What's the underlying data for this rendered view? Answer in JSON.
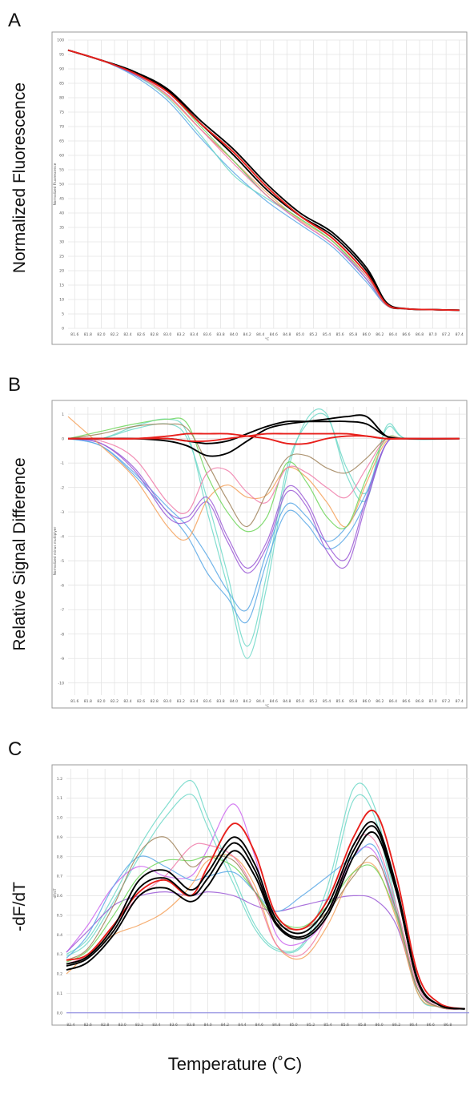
{
  "figure": {
    "panels": [
      "A",
      "B",
      "C"
    ],
    "x_axis_label": "Temperature (˚C)",
    "y_labels": [
      "Normalized Fluorescence",
      "Relative Signal Difference",
      "-dF/dT"
    ]
  },
  "chart_data": [
    {
      "type": "line",
      "panel": "A",
      "ylabel": "Normalized Fluorescence",
      "inner_ylabel": "Normalized Fluorescence",
      "inner_xlabel": "°C",
      "xlim": [
        81.5,
        87.5
      ],
      "ylim": [
        0,
        100
      ],
      "x_ticks": [
        "81.6",
        "81.8",
        "82.0",
        "82.2",
        "82.4",
        "82.6",
        "82.8",
        "83.0",
        "83.2",
        "83.4",
        "83.6",
        "83.8",
        "84.0",
        "84.2",
        "84.4",
        "84.6",
        "84.8",
        "85.0",
        "85.2",
        "85.4",
        "85.6",
        "85.8",
        "86.0",
        "86.2",
        "86.4",
        "86.6",
        "86.8",
        "87.0",
        "87.2",
        "87.4"
      ],
      "y_ticks": [
        "0",
        "5",
        "10",
        "15",
        "20",
        "25",
        "30",
        "35",
        "40",
        "45",
        "50",
        "55",
        "60",
        "65",
        "70",
        "75",
        "80",
        "85",
        "90",
        "95",
        "100"
      ],
      "grid": true,
      "x": [
        81.5,
        82.0,
        82.5,
        83.0,
        83.5,
        84.0,
        84.5,
        85.0,
        85.5,
        86.0,
        86.3,
        86.6,
        87.0,
        87.4
      ],
      "series": [
        {
          "color": "#000000",
          "values": [
            96.5,
            93,
            89,
            83,
            72,
            62,
            50,
            40,
            33,
            21,
            9,
            6.8,
            6.5,
            6.3
          ]
        },
        {
          "color": "#000000",
          "values": [
            96.5,
            93,
            89,
            82.5,
            71,
            60,
            48,
            39,
            32,
            20,
            8.5,
            6.8,
            6.5,
            6.3
          ]
        },
        {
          "color": "#e8201c",
          "values": [
            96.5,
            93,
            88.5,
            82,
            71,
            61,
            49,
            39,
            31,
            19,
            8.5,
            6.8,
            6.5,
            6.3
          ]
        },
        {
          "color": "#5aa8e6",
          "values": [
            96.5,
            93,
            87.5,
            79,
            66,
            54,
            44,
            36,
            28,
            16,
            8,
            6.8,
            6.5,
            6.3
          ]
        },
        {
          "color": "#6fd8c8",
          "values": [
            96.5,
            93,
            88,
            80,
            67,
            53,
            45,
            38,
            30,
            17,
            8,
            6.8,
            6.5,
            6.3
          ]
        },
        {
          "color": "#9b59d6",
          "values": [
            96.5,
            93,
            88,
            81,
            69,
            58,
            46,
            37,
            29,
            17,
            8,
            6.8,
            6.5,
            6.3
          ]
        },
        {
          "color": "#f4a15a",
          "values": [
            96.5,
            93,
            88.5,
            80.5,
            69,
            58,
            47,
            37.5,
            30,
            18,
            8.5,
            6.8,
            6.5,
            6.3
          ]
        },
        {
          "color": "#6fd65a",
          "values": [
            96.5,
            93,
            89,
            82,
            70,
            58,
            46,
            38,
            30,
            18,
            8,
            6.8,
            6.5,
            6.3
          ]
        },
        {
          "color": "#f07aa8",
          "values": [
            96.5,
            93,
            88.5,
            81,
            69,
            57,
            46,
            37,
            29,
            18,
            8,
            6.8,
            6.5,
            6.3
          ]
        }
      ]
    },
    {
      "type": "line",
      "panel": "B",
      "ylabel": "Relative Signal Difference",
      "inner_ylabel": "Normalized minus multiplyer",
      "inner_xlabel": "°C",
      "xlim": [
        81.5,
        87.5
      ],
      "ylim": [
        -10.5,
        1.3
      ],
      "x_ticks": [
        "81.6",
        "81.8",
        "82.0",
        "82.2",
        "82.4",
        "82.6",
        "82.8",
        "83.0",
        "83.2",
        "83.4",
        "83.6",
        "83.8",
        "84.0",
        "84.2",
        "84.4",
        "84.6",
        "84.8",
        "85.0",
        "85.2",
        "85.4",
        "85.6",
        "85.8",
        "86.0",
        "86.2",
        "86.4",
        "86.6",
        "86.8",
        "87.0",
        "87.2",
        "87.4"
      ],
      "y_ticks": [
        "1",
        "0",
        "-1",
        "-2",
        "-3",
        "-4",
        "-5",
        "-6",
        "-7",
        "-8",
        "-9",
        "-10"
      ],
      "grid": true,
      "x": [
        81.5,
        82.0,
        82.5,
        83.0,
        83.3,
        83.6,
        83.9,
        84.2,
        84.5,
        84.8,
        85.1,
        85.4,
        85.7,
        86.0,
        86.3,
        86.6,
        87.4
      ],
      "series": [
        {
          "color": "#000000",
          "values": [
            0,
            0,
            0,
            -0.1,
            -0.3,
            -0.7,
            -0.6,
            -0.1,
            0.4,
            0.6,
            0.7,
            0.8,
            0.9,
            0.9,
            0.1,
            0,
            0
          ]
        },
        {
          "color": "#000000",
          "values": [
            0,
            0,
            0,
            0,
            -0.1,
            -0.2,
            -0.1,
            0.2,
            0.5,
            0.7,
            0.7,
            0.7,
            0.7,
            0.6,
            0.1,
            0,
            0
          ]
        },
        {
          "color": "#e8201c",
          "values": [
            0,
            0,
            0,
            0.1,
            0.2,
            0.2,
            0.2,
            0.1,
            0,
            -0.2,
            -0.2,
            0,
            0.1,
            0.1,
            0,
            0,
            0
          ]
        },
        {
          "color": "#e8201c",
          "values": [
            0,
            0,
            0,
            0,
            -0.1,
            -0.1,
            0,
            0.1,
            0.2,
            0.2,
            0.2,
            0.2,
            0.2,
            0.1,
            0,
            0,
            0
          ]
        },
        {
          "color": "#6fd8c8",
          "values": [
            0,
            0,
            0.5,
            0.8,
            0.2,
            -3,
            -6,
            -9,
            -6,
            -1.5,
            0.8,
            1.0,
            -1.5,
            -2.5,
            0.5,
            0,
            0
          ]
        },
        {
          "color": "#6fd8c8",
          "values": [
            0,
            0,
            0.4,
            0.6,
            0,
            -2.5,
            -5.5,
            -8.5,
            -5.5,
            -1.2,
            0.6,
            0.9,
            -1.2,
            -2.2,
            0.4,
            0,
            0
          ]
        },
        {
          "color": "#5aa8e6",
          "values": [
            0,
            -0.3,
            -1.5,
            -3,
            -4,
            -5.5,
            -6.5,
            -7.5,
            -5,
            -3,
            -3.5,
            -4.5,
            -4,
            -2.5,
            -0.2,
            0,
            0
          ]
        },
        {
          "color": "#5aa8e6",
          "values": [
            0,
            -0.3,
            -1.4,
            -2.8,
            -3.6,
            -4.8,
            -6.2,
            -7.0,
            -4.6,
            -2.7,
            -3.2,
            -4.2,
            -3.6,
            -2.2,
            -0.2,
            0,
            0
          ]
        },
        {
          "color": "#9b59d6",
          "values": [
            0,
            -0.2,
            -1.3,
            -3.2,
            -3.4,
            -2.6,
            -4.2,
            -5.5,
            -4.4,
            -2.2,
            -2.8,
            -4.6,
            -5.2,
            -2.6,
            -0.2,
            0,
            0
          ]
        },
        {
          "color": "#9b59d6",
          "values": [
            0,
            -0.2,
            -1.2,
            -3.0,
            -3.2,
            -2.4,
            -4.0,
            -5.3,
            -4.2,
            -2.0,
            -2.6,
            -4.3,
            -4.9,
            -2.4,
            -0.2,
            0,
            0
          ]
        },
        {
          "color": "#f4a15a",
          "values": [
            0.9,
            -0.3,
            -1.6,
            -3.6,
            -4.1,
            -2.5,
            -1.9,
            -2.4,
            -2.3,
            -1.2,
            -1.6,
            -2.6,
            -3.6,
            -1.8,
            -0.1,
            0,
            0
          ]
        },
        {
          "color": "#6fd65a",
          "values": [
            0,
            0.3,
            0.6,
            0.8,
            0.6,
            -1.5,
            -3.0,
            -3.8,
            -3.2,
            -1.0,
            -1.8,
            -3.2,
            -3.6,
            -1.6,
            0,
            0,
            0
          ]
        },
        {
          "color": "#f07aa8",
          "values": [
            0,
            -0.1,
            -0.8,
            -2.6,
            -3.0,
            -1.4,
            -1.3,
            -2.2,
            -2.6,
            -1.2,
            -1.4,
            -2.0,
            -2.4,
            -1.2,
            0,
            0,
            0
          ]
        },
        {
          "color": "#a0825a",
          "values": [
            0,
            0.2,
            0.5,
            0.6,
            0.4,
            -1.0,
            -2.5,
            -3.6,
            -2.2,
            -0.8,
            -0.7,
            -1.2,
            -1.4,
            -0.8,
            0,
            0,
            0
          ]
        }
      ]
    },
    {
      "type": "line",
      "panel": "C",
      "ylabel": "-dF/dT",
      "inner_ylabel": "-dF/dT",
      "xlim": [
        82.35,
        87.05
      ],
      "ylim": [
        -0.03,
        1.25
      ],
      "x_ticks": [
        "82.4",
        "82.6",
        "82.8",
        "83.0",
        "83.2",
        "83.4",
        "83.6",
        "83.8",
        "84.0",
        "84.2",
        "84.4",
        "84.6",
        "84.8",
        "85.0",
        "85.2",
        "85.4",
        "85.6",
        "85.8",
        "86.0",
        "86.2",
        "86.4",
        "86.6",
        "86.8"
      ],
      "y_ticks": [
        "0.0",
        "0.1",
        "0.2",
        "0.3",
        "0.4",
        "0.5",
        "0.6",
        "0.7",
        "0.8",
        "0.9",
        "1.0",
        "1.1",
        "1.2"
      ],
      "grid": true,
      "baseline": {
        "color": "#8a86e0",
        "value": 0.0
      },
      "x": [
        82.35,
        82.6,
        82.9,
        83.2,
        83.5,
        83.8,
        84.0,
        84.3,
        84.55,
        84.8,
        85.1,
        85.4,
        85.7,
        85.95,
        86.2,
        86.45,
        86.7,
        87.0
      ],
      "series": [
        {
          "color": "#e8201c",
          "values": [
            0.27,
            0.3,
            0.45,
            0.62,
            0.68,
            0.6,
            0.75,
            0.97,
            0.82,
            0.5,
            0.43,
            0.58,
            0.9,
            1.03,
            0.7,
            0.2,
            0.05,
            0.02
          ]
        },
        {
          "color": "#000000",
          "values": [
            0.25,
            0.29,
            0.44,
            0.68,
            0.73,
            0.63,
            0.72,
            0.9,
            0.76,
            0.48,
            0.41,
            0.55,
            0.86,
            0.97,
            0.65,
            0.17,
            0.04,
            0.02
          ]
        },
        {
          "color": "#000000",
          "values": [
            0.22,
            0.26,
            0.4,
            0.6,
            0.64,
            0.57,
            0.65,
            0.83,
            0.7,
            0.45,
            0.38,
            0.5,
            0.8,
            0.92,
            0.62,
            0.16,
            0.04,
            0.02
          ]
        },
        {
          "color": "#000000",
          "values": [
            0.24,
            0.28,
            0.42,
            0.64,
            0.69,
            0.6,
            0.69,
            0.87,
            0.73,
            0.46,
            0.39,
            0.52,
            0.83,
            0.95,
            0.63,
            0.16,
            0.04,
            0.02
          ]
        },
        {
          "color": "#6fd8c8",
          "values": [
            0.3,
            0.38,
            0.6,
            0.85,
            1.05,
            1.19,
            1.0,
            0.7,
            0.45,
            0.33,
            0.35,
            0.65,
            1.15,
            1.05,
            0.55,
            0.1,
            0.03,
            0.02
          ]
        },
        {
          "color": "#6fd8c8",
          "values": [
            0.29,
            0.36,
            0.57,
            0.8,
            1.0,
            1.12,
            0.95,
            0.66,
            0.43,
            0.32,
            0.34,
            0.6,
            1.09,
            1.0,
            0.52,
            0.1,
            0.03,
            0.02
          ]
        },
        {
          "color": "#cc66ee",
          "values": [
            0.31,
            0.45,
            0.65,
            0.75,
            0.7,
            0.7,
            0.84,
            1.07,
            0.8,
            0.4,
            0.36,
            0.5,
            0.8,
            0.82,
            0.5,
            0.12,
            0.03,
            0.02
          ]
        },
        {
          "color": "#9b59d6",
          "values": [
            0.31,
            0.42,
            0.55,
            0.6,
            0.62,
            0.6,
            0.62,
            0.6,
            0.55,
            0.52,
            0.55,
            0.58,
            0.6,
            0.58,
            0.45,
            0.12,
            0.03,
            0.02
          ]
        },
        {
          "color": "#5aa8e6",
          "values": [
            0.28,
            0.4,
            0.65,
            0.8,
            0.75,
            0.68,
            0.7,
            0.72,
            0.62,
            0.52,
            0.6,
            0.7,
            0.8,
            0.85,
            0.52,
            0.12,
            0.03,
            0.02
          ]
        },
        {
          "color": "#f4a15a",
          "values": [
            0.2,
            0.3,
            0.4,
            0.45,
            0.52,
            0.65,
            0.78,
            0.8,
            0.65,
            0.35,
            0.28,
            0.45,
            0.72,
            0.75,
            0.48,
            0.1,
            0.03,
            0.02
          ]
        },
        {
          "color": "#6fd65a",
          "values": [
            0.26,
            0.32,
            0.5,
            0.7,
            0.78,
            0.78,
            0.8,
            0.75,
            0.62,
            0.48,
            0.44,
            0.55,
            0.72,
            0.74,
            0.5,
            0.12,
            0.03,
            0.02
          ]
        },
        {
          "color": "#f07aa8",
          "values": [
            0.25,
            0.3,
            0.45,
            0.6,
            0.7,
            0.85,
            0.86,
            0.8,
            0.62,
            0.35,
            0.3,
            0.5,
            0.86,
            0.88,
            0.55,
            0.14,
            0.03,
            0.02
          ]
        },
        {
          "color": "#a0825a",
          "values": [
            0.27,
            0.33,
            0.55,
            0.82,
            0.9,
            0.75,
            0.8,
            0.78,
            0.62,
            0.46,
            0.43,
            0.52,
            0.7,
            0.8,
            0.52,
            0.12,
            0.03,
            0.02
          ]
        }
      ]
    }
  ]
}
